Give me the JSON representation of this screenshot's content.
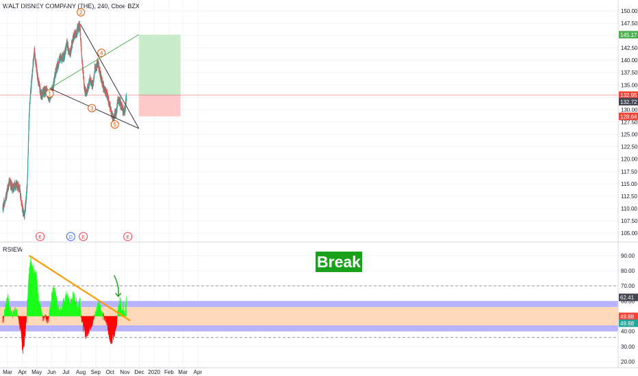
{
  "header": {
    "symbol_title": "WALT DISNEY COMPANY (THE), 240, Cboe BZX"
  },
  "indicator": {
    "name": "RSIEW"
  },
  "annotation": {
    "break_label": "Break"
  },
  "colors": {
    "up": "#26a69a",
    "down": "#ef5350",
    "rsi_up": "#17ff17",
    "rsi_down": "#ff0000",
    "band": "#b7b3ff",
    "band_mid": "#ffd9b8",
    "target_zone": "#c8ebc8",
    "stop_zone": "#ffc9c9",
    "wedge": "#2a2e39",
    "trend_green": "#4caf50",
    "trend_orange": "#ff9800",
    "wave_label": "#e65100"
  },
  "chart_data": [
    {
      "type": "candlestick",
      "title": "WALT DISNEY COMPANY (THE), 240, Cboe BZX",
      "xlabel": "",
      "ylabel": "",
      "x_ticks": [
        "Mar",
        "Apr",
        "May",
        "Jun",
        "Jul",
        "Aug",
        "Sep",
        "Oct",
        "Nov",
        "Dec",
        "2020",
        "Feb",
        "Mar",
        "Apr"
      ],
      "y_ticks": [
        "150.00",
        "147.50",
        "145.00",
        "142.50",
        "140.00",
        "137.50",
        "135.00",
        "132.50",
        "130.00",
        "127.50",
        "125.00",
        "122.50",
        "120.00",
        "117.50",
        "115.00",
        "112.50",
        "110.00",
        "107.50",
        "105.00"
      ],
      "ylim": [
        103.5,
        151.5
      ],
      "price_path": [
        [
          "2019-02-19",
          110.0
        ],
        [
          "2019-02-27",
          113.0
        ],
        [
          "2019-03-05",
          115.5
        ],
        [
          "2019-03-12",
          114.0
        ],
        [
          "2019-03-19",
          115.0
        ],
        [
          "2019-03-26",
          114.0
        ],
        [
          "2019-04-01",
          110.0
        ],
        [
          "2019-04-05",
          108.5
        ],
        [
          "2019-04-08",
          111.0
        ],
        [
          "2019-04-11",
          115.0
        ],
        [
          "2019-04-12",
          117.5
        ],
        [
          "2019-04-15",
          129.0
        ],
        [
          "2019-04-17",
          132.0
        ],
        [
          "2019-04-23",
          139.0
        ],
        [
          "2019-04-26",
          142.0
        ],
        [
          "2019-05-02",
          137.0
        ],
        [
          "2019-05-10",
          133.0
        ],
        [
          "2019-05-20",
          134.0
        ],
        [
          "2019-05-28",
          132.5
        ],
        [
          "2019-06-03",
          134.0
        ],
        [
          "2019-06-10",
          138.0
        ],
        [
          "2019-06-17",
          140.0
        ],
        [
          "2019-06-28",
          141.0
        ],
        [
          "2019-07-03",
          143.5
        ],
        [
          "2019-07-09",
          141.0
        ],
        [
          "2019-07-17",
          145.0
        ],
        [
          "2019-07-23",
          145.5
        ],
        [
          "2019-07-26",
          146.5
        ],
        [
          "2019-07-30",
          147.0
        ],
        [
          "2019-08-02",
          142.0
        ],
        [
          "2019-08-06",
          137.0
        ],
        [
          "2019-08-09",
          134.0
        ],
        [
          "2019-08-13",
          133.5
        ],
        [
          "2019-08-20",
          136.0
        ],
        [
          "2019-08-26",
          135.0
        ],
        [
          "2019-08-30",
          138.0
        ],
        [
          "2019-09-06",
          139.5
        ],
        [
          "2019-09-09",
          138.0
        ],
        [
          "2019-09-16",
          135.0
        ],
        [
          "2019-09-23",
          133.5
        ],
        [
          "2019-09-30",
          131.0
        ],
        [
          "2019-10-03",
          129.5
        ],
        [
          "2019-10-08",
          128.0
        ],
        [
          "2019-10-15",
          130.0
        ],
        [
          "2019-10-17",
          132.0
        ],
        [
          "2019-10-22",
          131.5
        ],
        [
          "2019-10-25",
          130.5
        ],
        [
          "2019-10-29",
          129.5
        ],
        [
          "2019-11-01",
          130.0
        ],
        [
          "2019-11-04",
          132.7
        ]
      ],
      "last_price": "132.72",
      "price_labels": {
        "target": "145.17",
        "entry": "132.95",
        "last": "132.72",
        "stop": "128.64"
      },
      "long_position": {
        "start": "2019-11-30",
        "end": "2020-02-25",
        "entry": 132.95,
        "target": 145.17,
        "stop": 128.64
      },
      "wedge": {
        "upper": [
          [
            "2019-07-31",
            147.3
          ],
          [
            "2019-11-30",
            126.2
          ]
        ],
        "lower": [
          [
            "2019-05-28",
            134.3
          ],
          [
            "2019-11-30",
            126.2
          ]
        ]
      },
      "green_trendline": [
        [
          "2019-05-28",
          134.3
        ],
        [
          "2019-11-30",
          145.2
        ]
      ],
      "horizontal_line": 132.95,
      "waves": [
        {
          "label": "1",
          "date": "2019-05-28",
          "price": 133.3
        },
        {
          "label": "2",
          "date": "2019-08-01",
          "price": 149.7
        },
        {
          "label": "3",
          "date": "2019-08-24",
          "price": 130.3
        },
        {
          "label": "4",
          "date": "2019-09-13",
          "price": 141.5
        },
        {
          "label": "5",
          "date": "2019-10-11",
          "price": 127.0
        }
      ],
      "event_markers": [
        {
          "label": "E",
          "date": "2019-05-08"
        },
        {
          "label": "D",
          "date": "2019-07-11"
        },
        {
          "label": "E",
          "date": "2019-08-06"
        },
        {
          "label": "E",
          "date": "2019-11-07"
        }
      ]
    },
    {
      "type": "area",
      "title": "RSIEW",
      "y_ticks": [
        "90.00",
        "80.00",
        "70.00",
        "60.00",
        "50.00",
        "40.00",
        "30.00",
        "20.00"
      ],
      "ylim": [
        16,
        98
      ],
      "midline": 50,
      "bands": [
        [
          40,
          44
        ],
        [
          56,
          60
        ]
      ],
      "mid_zone": [
        44,
        56
      ],
      "dashed_levels": [
        70,
        36
      ],
      "rsi_path": [
        [
          "2019-02-19",
          46
        ],
        [
          "2019-02-25",
          57
        ],
        [
          "2019-03-01",
          64
        ],
        [
          "2019-03-06",
          55
        ],
        [
          "2019-03-12",
          51
        ],
        [
          "2019-03-18",
          56
        ],
        [
          "2019-03-25",
          47
        ],
        [
          "2019-03-29",
          38
        ],
        [
          "2019-04-02",
          27
        ],
        [
          "2019-04-05",
          33
        ],
        [
          "2019-04-09",
          45
        ],
        [
          "2019-04-12",
          65
        ],
        [
          "2019-04-15",
          78
        ],
        [
          "2019-04-17",
          88
        ],
        [
          "2019-04-22",
          84
        ],
        [
          "2019-04-26",
          80
        ],
        [
          "2019-04-30",
          78
        ],
        [
          "2019-05-03",
          66
        ],
        [
          "2019-05-08",
          58
        ],
        [
          "2019-05-14",
          47
        ],
        [
          "2019-05-20",
          49
        ],
        [
          "2019-05-24",
          45
        ],
        [
          "2019-05-29",
          56
        ],
        [
          "2019-06-03",
          68
        ],
        [
          "2019-06-10",
          66
        ],
        [
          "2019-06-14",
          56
        ],
        [
          "2019-06-20",
          54
        ],
        [
          "2019-06-27",
          60
        ],
        [
          "2019-07-02",
          65
        ],
        [
          "2019-07-09",
          58
        ],
        [
          "2019-07-16",
          64
        ],
        [
          "2019-07-22",
          60
        ],
        [
          "2019-07-26",
          56
        ],
        [
          "2019-07-30",
          62
        ],
        [
          "2019-08-02",
          50
        ],
        [
          "2019-08-06",
          43
        ],
        [
          "2019-08-12",
          37
        ],
        [
          "2019-08-16",
          40
        ],
        [
          "2019-08-22",
          44
        ],
        [
          "2019-08-28",
          48
        ],
        [
          "2019-09-04",
          56
        ],
        [
          "2019-09-09",
          60
        ],
        [
          "2019-09-13",
          53
        ],
        [
          "2019-09-18",
          49
        ],
        [
          "2019-09-25",
          45
        ],
        [
          "2019-09-30",
          36
        ],
        [
          "2019-10-03",
          32
        ],
        [
          "2019-10-07",
          37
        ],
        [
          "2019-10-11",
          40
        ],
        [
          "2019-10-16",
          48
        ],
        [
          "2019-10-18",
          55
        ],
        [
          "2019-10-22",
          62
        ],
        [
          "2019-10-25",
          52
        ],
        [
          "2019-10-29",
          57
        ],
        [
          "2019-11-01",
          49
        ],
        [
          "2019-11-04",
          63
        ]
      ],
      "price_labels": {
        "upper": "62.41",
        "mid": "49.88",
        "lower": "49.88"
      },
      "trendline": [
        [
          "2019-04-15",
          90
        ],
        [
          "2019-11-12",
          47
        ]
      ],
      "break_arrow": {
        "date": "2019-10-18",
        "from": 77,
        "to": 63
      }
    }
  ]
}
